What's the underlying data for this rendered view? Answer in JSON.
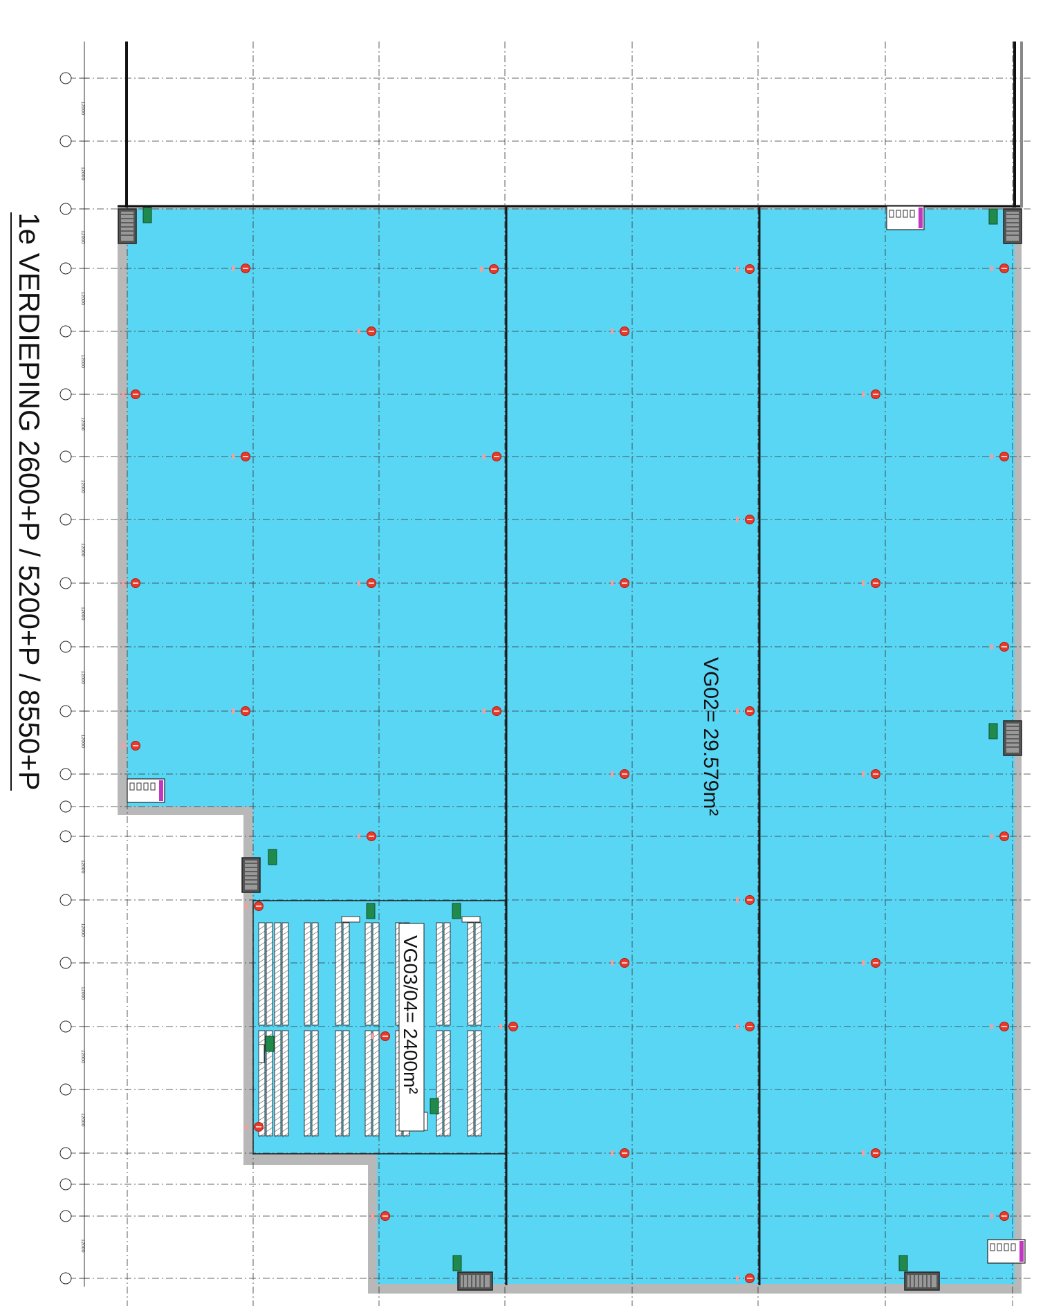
{
  "title": "1e VERDIEPING 2600+P / 5200+P / 8550+P",
  "areas": {
    "vg02": "VG02= 29.579m²",
    "vg0304": "VG03/04= 2400m²"
  },
  "dimension": "12000",
  "colors": {
    "floor": "#5ad6f5",
    "wall": "#b8b8b8",
    "grid": "#333333",
    "sprinkler": "#e83a2a",
    "exit_sign": "#1f8a4c"
  }
}
